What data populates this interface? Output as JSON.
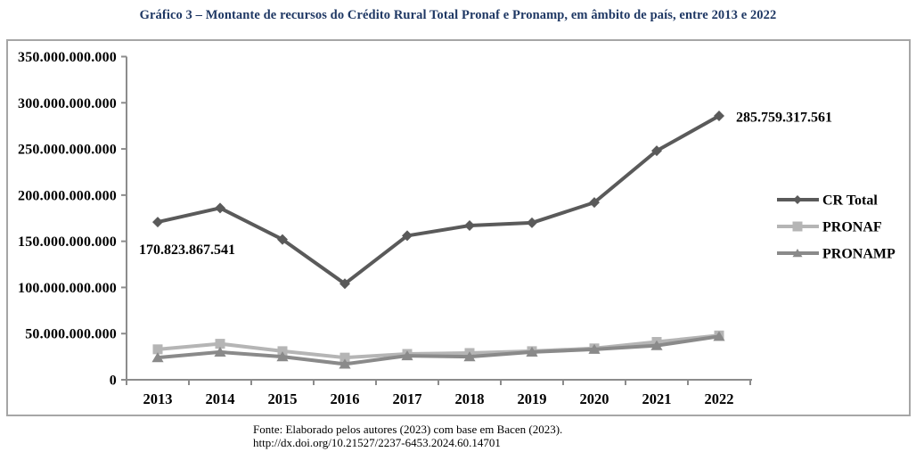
{
  "title": "Gráfico 3 – Montante de recursos do Crédito Rural Total Pronaf e Pronamp, em âmbito de país, entre 2013 e 2022",
  "footer": {
    "source": "Fonte: Elaborado pelos autores (2023) com base em Bacen (2023).",
    "doi": "http://dx.doi.org/10.21527/2237-6453.2024.60.14701"
  },
  "colors": {
    "title": "#1f3864",
    "axis": "#8c8c8c",
    "border": "#a6a6a6",
    "label_text": "#000000"
  },
  "chart_data": {
    "type": "line",
    "title": "Gráfico 3 – Montante de recursos do Crédito Rural Total Pronaf e Pronamp, em âmbito de país, entre 2013 e 2022",
    "categories": [
      "2013",
      "2014",
      "2015",
      "2016",
      "2017",
      "2018",
      "2019",
      "2020",
      "2021",
      "2022"
    ],
    "series": [
      {
        "name": "CR Total",
        "marker": "diamond",
        "color": "#5a5a5a",
        "values": [
          170823867541,
          186000000000,
          152000000000,
          104000000000,
          156000000000,
          167000000000,
          170000000000,
          192000000000,
          248000000000,
          285759317561
        ]
      },
      {
        "name": "PRONAF",
        "marker": "square",
        "color": "#b5b5b5",
        "values": [
          33000000000,
          39000000000,
          31000000000,
          24000000000,
          28000000000,
          29000000000,
          31000000000,
          34000000000,
          41000000000,
          48000000000
        ]
      },
      {
        "name": "PRONAMP",
        "marker": "triangle",
        "color": "#8a8a8a",
        "values": [
          24000000000,
          30000000000,
          25000000000,
          17000000000,
          26000000000,
          25000000000,
          30000000000,
          33000000000,
          37000000000,
          47000000000
        ]
      }
    ],
    "ylim": [
      0,
      350000000000
    ],
    "ytick_step": 50000000000,
    "ytick_labels": [
      "0",
      "50.000.000.000",
      "100.000.000.000",
      "150.000.000.000",
      "200.000.000.000",
      "250.000.000.000",
      "300.000.000.000",
      "350.000.000.000"
    ],
    "grid": false,
    "legend_position": "right",
    "legend_labels": [
      "CR Total",
      "PRONAF",
      "PRONAMP"
    ],
    "annotations": [
      {
        "text": "170.823.867.541",
        "series": 0,
        "index": 0,
        "align": "below-left"
      },
      {
        "text": "285.759.317.561",
        "series": 0,
        "index": 9,
        "align": "right"
      }
    ]
  }
}
